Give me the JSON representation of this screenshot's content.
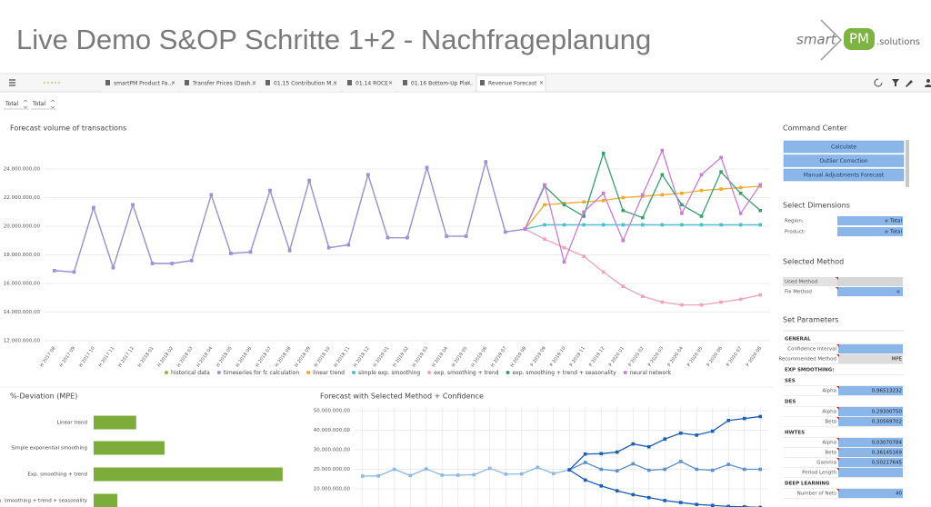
{
  "header": {
    "title": "Live Demo S&OP Schritte 1+2 - Nachfrageplanung",
    "logo": [
      "smart",
      "PM",
      ".solutions"
    ]
  },
  "tabs": [
    "smartPM Product Fa...",
    "Transfer Prices (Dash...",
    "01.15 Contribution M...",
    "01.14 ROCE",
    "01.16 Bottom-Up Pla...",
    "Revenue Forecast"
  ],
  "filters": [
    "Total",
    "Total"
  ],
  "chart_data": [
    {
      "type": "line",
      "title": "Forecast volume of transactions",
      "grid": true,
      "legend": "bottom",
      "categories": [
        "H 2017 08",
        "H 2017 09",
        "H 2017 10",
        "H 2017 11",
        "H 2017 12",
        "H 2018 01",
        "H 2018 02",
        "H 2018 03",
        "H 2018 04",
        "H 2018 05",
        "H 2018 06",
        "H 2018 07",
        "H 2018 08",
        "H 2018 09",
        "H 2018 10",
        "H 2018 11",
        "H 2018 12",
        "H 2019 01",
        "H 2019 02",
        "H 2019 03",
        "H 2019 04",
        "H 2019 05",
        "H 2019 06",
        "H 2019 07",
        "H 2019 08",
        "P 2019 09",
        "P 2019 10",
        "P 2019 11",
        "P 2019 12",
        "P 2020 01",
        "P 2020 02",
        "P 2020 03",
        "P 2020 04",
        "P 2020 05",
        "P 2020 06",
        "P 2020 07",
        "P 2020 08"
      ],
      "ylim": [
        12000000,
        26000000
      ],
      "yticks": [
        {
          "value": 12000000,
          "label": "12.000.000,00"
        },
        {
          "value": 14000000,
          "label": "14.000.000,00"
        },
        {
          "value": 16000000,
          "label": "16.000.000,00"
        },
        {
          "value": 18000000,
          "label": "18.000.000,00"
        },
        {
          "value": 20000000,
          "label": "20.000.000,00"
        },
        {
          "value": 22000000,
          "label": "22.000.000,00"
        },
        {
          "value": 24000000,
          "label": "24.000.000,00"
        }
      ],
      "series": [
        {
          "name": "historical data",
          "color": "#8fb94b",
          "values": [
            16900000,
            16800000,
            21300000,
            17100000,
            21500000,
            17400000,
            17400000,
            17600000,
            22200000,
            18100000,
            18200000,
            22500000,
            18300000,
            23200000,
            18500000,
            18700000,
            23600000,
            19200000,
            19200000,
            24100000,
            19300000,
            19300000,
            24500000,
            19600000,
            19800000,
            null,
            null,
            null,
            null,
            null,
            null,
            null,
            null,
            null,
            null,
            null,
            null
          ]
        },
        {
          "name": "timeseries for fc calculation",
          "color": "#9f8fe3",
          "values": [
            16900000,
            16800000,
            21300000,
            17100000,
            21500000,
            17400000,
            17400000,
            17600000,
            22200000,
            18100000,
            18200000,
            22500000,
            18300000,
            23200000,
            18500000,
            18700000,
            23600000,
            19200000,
            19200000,
            24100000,
            19300000,
            19300000,
            24500000,
            19600000,
            19800000,
            null,
            null,
            null,
            null,
            null,
            null,
            null,
            null,
            null,
            null,
            null,
            null
          ]
        },
        {
          "name": "linear trend",
          "color": "#eea92f",
          "values": [
            null,
            null,
            null,
            null,
            null,
            null,
            null,
            null,
            null,
            null,
            null,
            null,
            null,
            null,
            null,
            null,
            null,
            null,
            null,
            null,
            null,
            null,
            null,
            null,
            19800000,
            21500000,
            21600000,
            21700000,
            21800000,
            22000000,
            22100000,
            22200000,
            22300000,
            22500000,
            22600000,
            22700000,
            22800000
          ]
        },
        {
          "name": "simple exp. smoothing",
          "color": "#4cbfcf",
          "values": [
            null,
            null,
            null,
            null,
            null,
            null,
            null,
            null,
            null,
            null,
            null,
            null,
            null,
            null,
            null,
            null,
            null,
            null,
            null,
            null,
            null,
            null,
            null,
            null,
            19800000,
            20100000,
            20100000,
            20100000,
            20100000,
            20100000,
            20100000,
            20100000,
            20100000,
            20100000,
            20100000,
            20100000,
            20100000
          ]
        },
        {
          "name": "exp. smoothing + trend",
          "color": "#f2a1b9",
          "values": [
            null,
            null,
            null,
            null,
            null,
            null,
            null,
            null,
            null,
            null,
            null,
            null,
            null,
            null,
            null,
            null,
            null,
            null,
            null,
            null,
            null,
            null,
            null,
            null,
            19800000,
            19100000,
            18500000,
            17900000,
            16800000,
            15800000,
            15100000,
            14700000,
            14500000,
            14500000,
            14700000,
            14900000,
            15200000
          ]
        },
        {
          "name": "exp. smoothing + trend + seasonality",
          "color": "#3a9e6e",
          "values": [
            null,
            null,
            null,
            null,
            null,
            null,
            null,
            null,
            null,
            null,
            null,
            null,
            null,
            null,
            null,
            null,
            null,
            null,
            null,
            null,
            null,
            null,
            null,
            null,
            19800000,
            22800000,
            21500000,
            20700000,
            25100000,
            21100000,
            20600000,
            23600000,
            21500000,
            20700000,
            23800000,
            22300000,
            21100000
          ]
        },
        {
          "name": "neural network",
          "color": "#c77dd4",
          "values": [
            null,
            null,
            null,
            null,
            null,
            null,
            null,
            null,
            null,
            null,
            null,
            null,
            null,
            null,
            null,
            null,
            null,
            null,
            null,
            null,
            null,
            null,
            null,
            null,
            19800000,
            22900000,
            17500000,
            21000000,
            22300000,
            19000000,
            22200000,
            25300000,
            20900000,
            23600000,
            24800000,
            20900000,
            22900000
          ]
        }
      ]
    },
    {
      "type": "bar",
      "title": "%-Deviation (MPE)",
      "color": "#7cac3a",
      "xlim": [
        0,
        23
      ],
      "categories": [
        "Linear trend",
        "Simple exponential smoothing",
        "Exp. smoothing + trend",
        "Exp. smoothing + trend + seasonality"
      ],
      "values": [
        4.5,
        7.5,
        20,
        2.5
      ]
    },
    {
      "type": "line",
      "title": "Forecast with Selected Method + Confidence",
      "grid": true,
      "categories": [
        null,
        null,
        null,
        null,
        null,
        null,
        null,
        null,
        null,
        null,
        null,
        null,
        null,
        null,
        null,
        null,
        null,
        null,
        null,
        null,
        null,
        null,
        null,
        null,
        null,
        null
      ],
      "ylim": [
        0,
        52000000
      ],
      "yticks": [
        {
          "value": 10000000,
          "label": "10.000.000,00"
        },
        {
          "value": 20000000,
          "label": "20.000.000,00"
        },
        {
          "value": 30000000,
          "label": "30.000.000,00"
        },
        {
          "value": 40000000,
          "label": "40.000.000,00"
        },
        {
          "value": 50000000,
          "label": "50.000.000,00"
        }
      ],
      "series": [
        {
          "color": "#8cb8e8",
          "values": [
            16500000,
            16600000,
            20000000,
            16800000,
            20200000,
            17000000,
            17000000,
            17200000,
            20500000,
            17500000,
            17600000,
            21000000,
            17800000,
            19700000,
            null,
            null,
            null,
            null,
            null,
            null,
            null,
            null,
            null,
            null,
            null,
            null
          ]
        },
        {
          "color": "#1a5fb4",
          "values": [
            null,
            null,
            null,
            null,
            null,
            null,
            null,
            null,
            null,
            null,
            null,
            null,
            null,
            19700000,
            27800000,
            28000000,
            28800000,
            33000000,
            31500000,
            35500000,
            38500000,
            37500000,
            39500000,
            45000000,
            46000000,
            47000000
          ]
        },
        {
          "color": "#5b8fd0",
          "values": [
            null,
            null,
            null,
            null,
            null,
            null,
            null,
            null,
            null,
            null,
            null,
            null,
            null,
            19700000,
            23500000,
            20000000,
            19200000,
            22800000,
            19500000,
            20000000,
            24000000,
            20000000,
            19500000,
            22500000,
            20000000,
            20000000
          ]
        },
        {
          "color": "#1a5fb4",
          "values": [
            null,
            null,
            null,
            null,
            null,
            null,
            null,
            null,
            null,
            null,
            null,
            null,
            null,
            19700000,
            14500000,
            11500000,
            9000000,
            7000000,
            5500000,
            4000000,
            3000000,
            2000000,
            1500000,
            1000000,
            800000,
            500000
          ]
        }
      ]
    }
  ],
  "command_center": {
    "title": "Command Center",
    "buttons": [
      "Calculate",
      "Outlier Correction",
      "Manual Adjustments Forecast"
    ]
  },
  "dimensions": {
    "title": "Select Dimensions",
    "rows": [
      [
        "Region:",
        "Total"
      ],
      [
        "Product:",
        "Total"
      ]
    ]
  },
  "method": {
    "title": "Selected Method",
    "rows": [
      "Used Method",
      "Fix Method"
    ]
  },
  "parameters": {
    "title": "Set Parameters",
    "rows": [
      [
        "GENERAL"
      ],
      [
        "Confidence Interval"
      ],
      [
        "Recommended Method",
        "MPE"
      ],
      [
        "EXP SMOOTHING:"
      ],
      [
        "SES"
      ],
      [
        "Alpha",
        "0,96513232"
      ],
      [
        "DES"
      ],
      [
        "Alpha",
        "0,29300750"
      ],
      [
        "Beta",
        "0,30569702"
      ],
      [
        "HWTES"
      ],
      [
        "Alpha",
        "0,03070784"
      ],
      [
        "Beta",
        "0,36145169"
      ],
      [
        "Gamma",
        "0,50217645"
      ],
      [
        "Period Length"
      ],
      [
        "DEEP LEARNING"
      ],
      [
        "Number of Nets",
        "40"
      ]
    ]
  }
}
